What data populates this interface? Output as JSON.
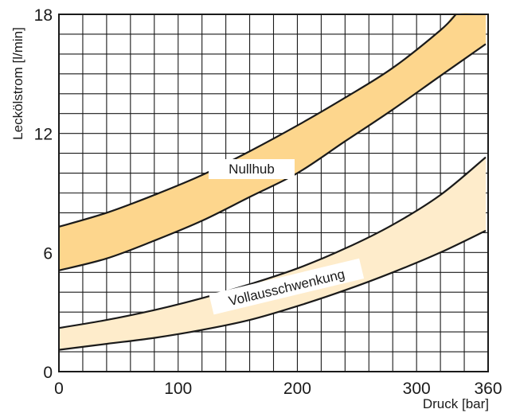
{
  "chart_data": {
    "type": "area",
    "xlabel": "Druck [bar]",
    "ylabel": "Leckölstrom [l/min]",
    "xlim": [
      0,
      360
    ],
    "ylim": [
      0,
      18
    ],
    "x_ticks": [
      0,
      100,
      200,
      300,
      360
    ],
    "y_ticks": [
      0,
      6,
      12,
      18
    ],
    "x_tick_labels": [
      "0",
      "100",
      "200",
      "300",
      "360"
    ],
    "y_tick_labels": [
      "0",
      "6",
      "12",
      "18"
    ],
    "grid": true,
    "colors": {
      "band_upper": "#fdd68d",
      "band_lower": "#feeccb",
      "line": "#1a1a1a"
    },
    "series": [
      {
        "name": "Nullhub",
        "label": "Nullhub",
        "upper": {
          "x": [
            0,
            40,
            80,
            120,
            160,
            200,
            240,
            280,
            320,
            333
          ],
          "y": [
            7.3,
            8.0,
            8.9,
            9.9,
            11.1,
            12.4,
            13.8,
            15.3,
            17.2,
            18.0
          ]
        },
        "lower": {
          "x": [
            0,
            40,
            80,
            120,
            160,
            200,
            240,
            280,
            320,
            358
          ],
          "y": [
            5.1,
            5.7,
            6.6,
            7.6,
            8.8,
            10.0,
            11.6,
            13.2,
            14.9,
            16.5
          ]
        },
        "band_end_x": 358
      },
      {
        "name": "Vollausschwenkung",
        "label": "Vollausschwenkung",
        "upper": {
          "x": [
            0,
            40,
            80,
            120,
            160,
            200,
            240,
            280,
            320,
            358
          ],
          "y": [
            2.2,
            2.6,
            3.1,
            3.7,
            4.4,
            5.2,
            6.2,
            7.4,
            8.9,
            10.8
          ]
        },
        "lower": {
          "x": [
            0,
            40,
            80,
            120,
            160,
            200,
            240,
            280,
            320,
            358
          ],
          "y": [
            1.1,
            1.4,
            1.7,
            2.1,
            2.6,
            3.3,
            4.1,
            5.0,
            6.0,
            7.1
          ]
        },
        "band_end_x": 358
      }
    ]
  }
}
